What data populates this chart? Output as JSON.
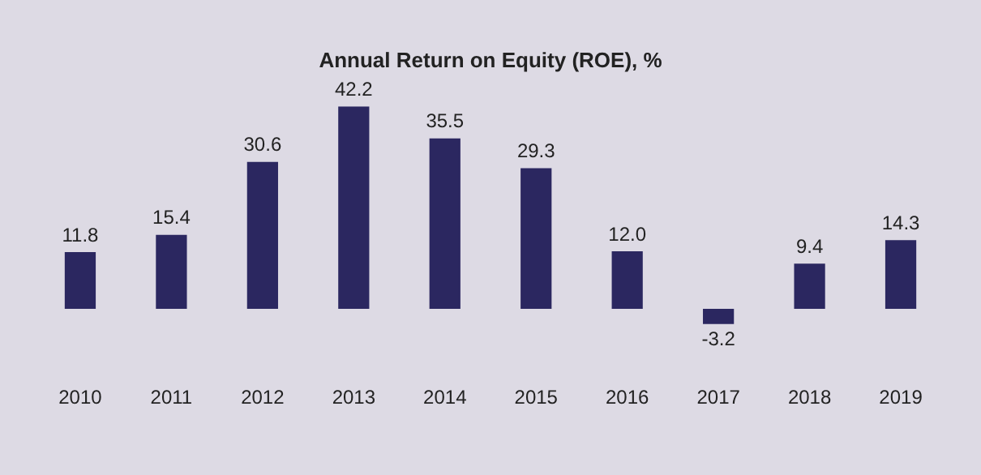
{
  "chart_data": {
    "type": "bar",
    "title": "Annual Return on Equity (ROE), %",
    "categories": [
      "2010",
      "2011",
      "2012",
      "2013",
      "2014",
      "2015",
      "2016",
      "2017",
      "2018",
      "2019"
    ],
    "values": [
      11.8,
      15.4,
      30.6,
      42.2,
      35.5,
      29.3,
      12.0,
      -3.2,
      9.4,
      14.3
    ],
    "value_labels": [
      "11.8",
      "15.4",
      "30.6",
      "42.2",
      "35.5",
      "29.3",
      "12.0",
      "-3.2",
      "9.4",
      "14.3"
    ],
    "color": "#2b2760"
  }
}
